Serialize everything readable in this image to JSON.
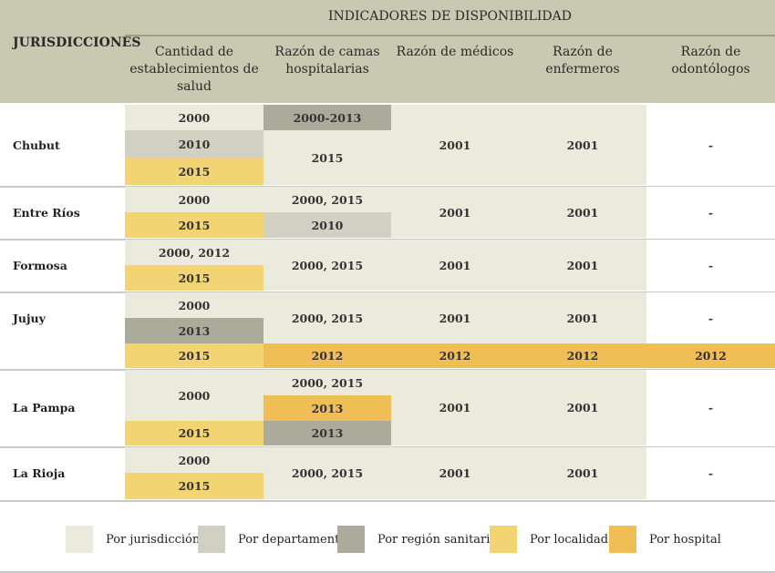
{
  "header": {
    "jurisdicciones": "JURISDICCIONES",
    "group": "INDICADORES DE DISPONIBILIDAD",
    "columns": [
      "Cantidad de establecimientos de salud",
      "Razón de camas hospitalarias",
      "Razón de médicos",
      "Razón de enfermeros",
      "Razón de odontólogos"
    ]
  },
  "colors": {
    "jurisdiccion": "#eaebdc",
    "departamento": "#d1d0c2",
    "region": "#aaab9b",
    "localidad": "#f2d472",
    "hospital": "#efbe54",
    "none": "#ffffff"
  },
  "rows": [
    {
      "name": "Chubut",
      "cells": [
        {
          "col": 0,
          "text": "2000",
          "level": "jurisdiccion"
        },
        {
          "col": 0,
          "text": "2010",
          "level": "departamento"
        },
        {
          "col": 0,
          "text": "2015",
          "level": "localidad"
        },
        {
          "col": 1,
          "text": "2000-2013",
          "level": "region"
        },
        {
          "col": 1,
          "text": "2015",
          "level": "jurisdiccion"
        },
        {
          "col": 2,
          "text": "2001",
          "level": "jurisdiccion"
        },
        {
          "col": 3,
          "text": "2001",
          "level": "jurisdiccion"
        },
        {
          "col": 4,
          "text": "-",
          "level": "none"
        }
      ]
    },
    {
      "name": "Entre Ríos",
      "cells": [
        {
          "col": 0,
          "text": "2000",
          "level": "jurisdiccion"
        },
        {
          "col": 0,
          "text": "2015",
          "level": "localidad"
        },
        {
          "col": 1,
          "text": "2000, 2015",
          "level": "jurisdiccion"
        },
        {
          "col": 1,
          "text": "2010",
          "level": "departamento"
        },
        {
          "col": 2,
          "text": "2001",
          "level": "jurisdiccion"
        },
        {
          "col": 3,
          "text": "2001",
          "level": "jurisdiccion"
        },
        {
          "col": 4,
          "text": "-",
          "level": "none"
        }
      ]
    },
    {
      "name": "Formosa",
      "cells": [
        {
          "col": 0,
          "text": "2000, 2012",
          "level": "jurisdiccion"
        },
        {
          "col": 0,
          "text": "2015",
          "level": "localidad"
        },
        {
          "col": 1,
          "text": "2000, 2015",
          "level": "jurisdiccion"
        },
        {
          "col": 2,
          "text": "2001",
          "level": "jurisdiccion"
        },
        {
          "col": 3,
          "text": "2001",
          "level": "jurisdiccion"
        },
        {
          "col": 4,
          "text": "-",
          "level": "none"
        }
      ]
    },
    {
      "name": "Jujuy",
      "cells": [
        {
          "col": 0,
          "text": "2000",
          "level": "jurisdiccion"
        },
        {
          "col": 0,
          "text": "2013",
          "level": "region"
        },
        {
          "col": 0,
          "text": "2015",
          "level": "localidad"
        },
        {
          "col": 1,
          "text": "2000, 2015",
          "level": "jurisdiccion"
        },
        {
          "col": 1,
          "text": "2012",
          "level": "hospital"
        },
        {
          "col": 2,
          "text": "2001",
          "level": "jurisdiccion"
        },
        {
          "col": 2,
          "text": "2012",
          "level": "hospital"
        },
        {
          "col": 3,
          "text": "2001",
          "level": "jurisdiccion"
        },
        {
          "col": 3,
          "text": "2012",
          "level": "hospital"
        },
        {
          "col": 4,
          "text": "-",
          "level": "none"
        },
        {
          "col": 4,
          "text": "2012",
          "level": "hospital"
        }
      ]
    },
    {
      "name": "La Pampa",
      "cells": [
        {
          "col": 0,
          "text": "2000",
          "level": "jurisdiccion"
        },
        {
          "col": 0,
          "text": "2015",
          "level": "localidad"
        },
        {
          "col": 1,
          "text": "2000, 2015",
          "level": "jurisdiccion"
        },
        {
          "col": 1,
          "text": "2013",
          "level": "hospital"
        },
        {
          "col": 1,
          "text": "2013",
          "level": "region"
        },
        {
          "col": 2,
          "text": "2001",
          "level": "jurisdiccion"
        },
        {
          "col": 3,
          "text": "2001",
          "level": "jurisdiccion"
        },
        {
          "col": 4,
          "text": "-",
          "level": "none"
        }
      ]
    },
    {
      "name": "La Rioja",
      "cells": [
        {
          "col": 0,
          "text": "2000",
          "level": "jurisdiccion"
        },
        {
          "col": 0,
          "text": "2015",
          "level": "localidad"
        },
        {
          "col": 1,
          "text": "2000, 2015",
          "level": "jurisdiccion"
        },
        {
          "col": 2,
          "text": "2001",
          "level": "jurisdiccion"
        },
        {
          "col": 3,
          "text": "2001",
          "level": "jurisdiccion"
        },
        {
          "col": 4,
          "text": "-",
          "level": "none"
        }
      ]
    }
  ],
  "legend": [
    {
      "label": "Por jurisdicción",
      "level": "jurisdiccion"
    },
    {
      "label": "Por departamento",
      "level": "departamento"
    },
    {
      "label": "Por región sanitaria",
      "level": "region"
    },
    {
      "label": "Por localidad",
      "level": "localidad"
    },
    {
      "label": "Por hospital",
      "level": "hospital"
    }
  ]
}
